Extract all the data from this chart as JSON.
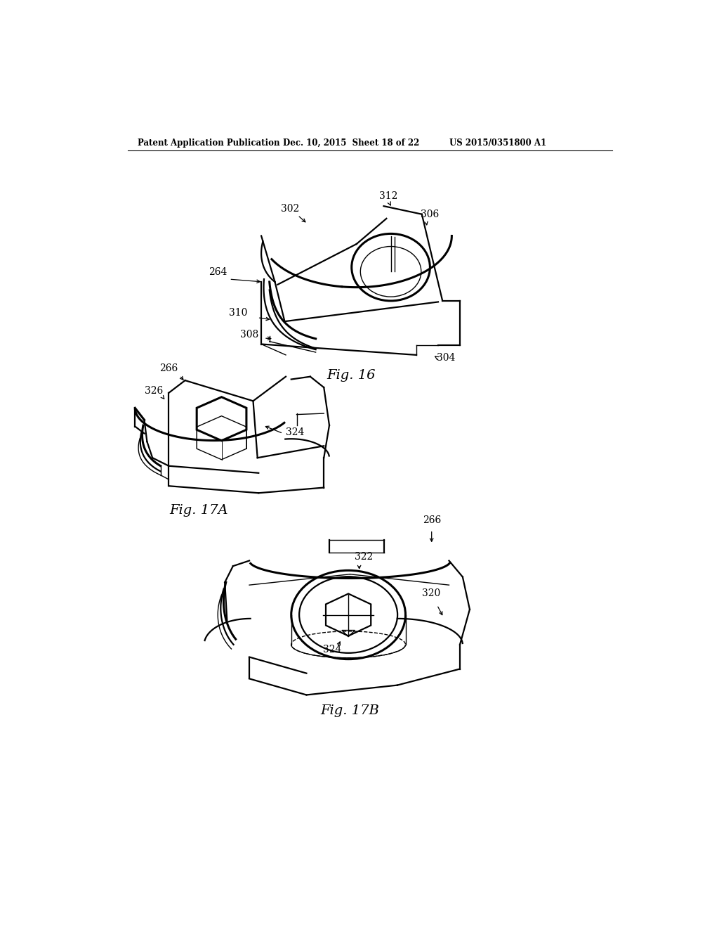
{
  "background_color": "#ffffff",
  "header_left": "Patent Application Publication",
  "header_mid": "Dec. 10, 2015  Sheet 18 of 22",
  "header_right": "US 2015/0351800 A1",
  "fig16_caption": "Fig. 16",
  "fig17a_caption": "Fig. 17A",
  "fig17b_caption": "Fig. 17B"
}
